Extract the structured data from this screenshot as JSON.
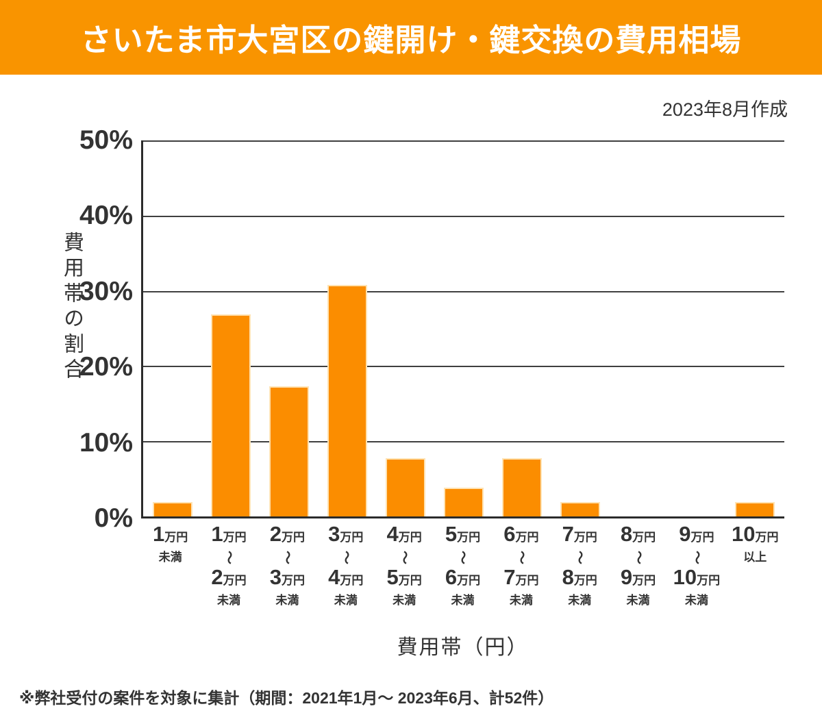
{
  "header": {
    "title": "さいたま市大宮区の鍵開け・鍵交換の費用相場"
  },
  "meta": {
    "created": "2023年8月作成",
    "footnote": "※弊社受付の案件を対象に集計（期間：2021年1月〜 2023年6月、計52件）"
  },
  "chart_data": {
    "type": "bar",
    "title": "さいたま市大宮区の鍵開け・鍵交換の費用相場",
    "xlabel": "費用帯（円）",
    "ylabel": "費用帯の割合",
    "ylim": [
      0,
      50
    ],
    "yticks": [
      0,
      10,
      20,
      30,
      40,
      50
    ],
    "ytick_labels": [
      "0%",
      "10%",
      "20%",
      "30%",
      "40%",
      "50%"
    ],
    "grid": true,
    "legend_position": "none",
    "categories": [
      "1万円未満",
      "1万円〜2万円未満",
      "2万円〜3万円未満",
      "3万円〜4万円未満",
      "4万円〜5万円未満",
      "5万円〜6万円未満",
      "6万円〜7万円未満",
      "7万円〜8万円未満",
      "8万円〜9万円未満",
      "9万円〜10万円未満",
      "10万円以上"
    ],
    "category_lines": [
      [
        "1万円",
        "未満"
      ],
      [
        "1万円",
        "〜",
        "2万円",
        "未満"
      ],
      [
        "2万円",
        "〜",
        "3万円",
        "未満"
      ],
      [
        "3万円",
        "〜",
        "4万円",
        "未満"
      ],
      [
        "4万円",
        "〜",
        "5万円",
        "未満"
      ],
      [
        "5万円",
        "〜",
        "6万円",
        "未満"
      ],
      [
        "6万円",
        "〜",
        "7万円",
        "未満"
      ],
      [
        "7万円",
        "〜",
        "8万円",
        "未満"
      ],
      [
        "8万円",
        "〜",
        "9万円",
        "未満"
      ],
      [
        "9万円",
        "〜",
        "10万円",
        "未満"
      ],
      [
        "10万円",
        "以上"
      ]
    ],
    "values": [
      1.9,
      26.9,
      17.3,
      30.8,
      7.7,
      3.8,
      7.7,
      1.9,
      0,
      0,
      1.9
    ]
  },
  "colors": {
    "banner_bg": "#F99400",
    "banner_text": "#FFFFFF",
    "bar_fill": "#FB8D00",
    "bar_border": "#FFE3B3",
    "grid_line": "#3F3F3F",
    "axis_line": "#2B2B2B",
    "text": "#333333"
  }
}
